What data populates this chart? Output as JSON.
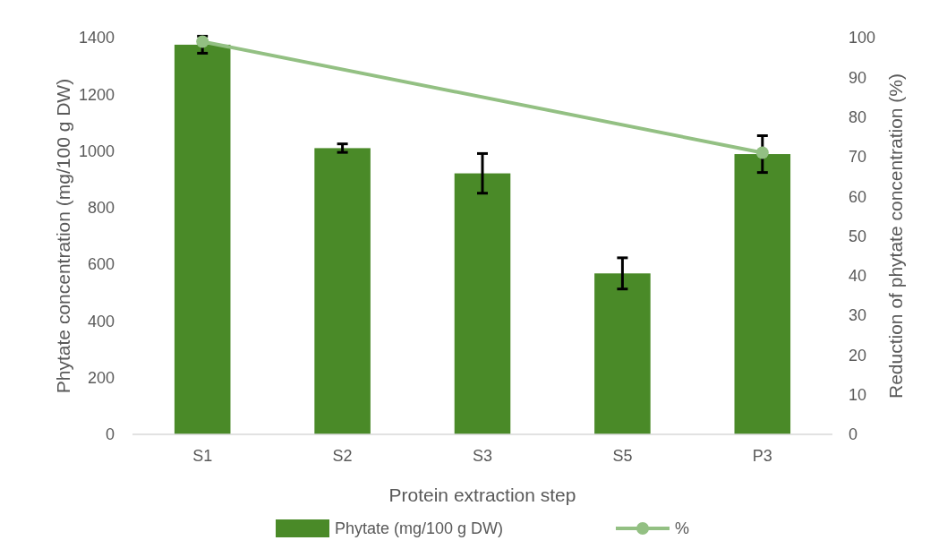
{
  "chart_data": {
    "type": "bar",
    "xlabel": "Protein extraction step",
    "ylabel": "Phytate concentration (mg/100 g DW)",
    "y2label": "Reduction of phytate concentration (%)",
    "categories": [
      "S1",
      "S2",
      "S3",
      "S5",
      "P3"
    ],
    "series": [
      {
        "name": "Phytate (mg/100 g DW)",
        "color": "#4a8a28",
        "values": [
          1375,
          1010,
          921,
          568,
          989
        ],
        "errors": [
          30,
          15,
          70,
          55,
          65
        ]
      },
      {
        "name": "%",
        "type": "line",
        "axis": "y2",
        "color": "#93c083",
        "values": [
          99,
          null,
          null,
          null,
          71
        ],
        "marker": "circle"
      }
    ],
    "ylim": [
      0,
      1400
    ],
    "yticks": [
      0,
      200,
      400,
      600,
      800,
      1000,
      1200,
      1400
    ],
    "y2lim": [
      0,
      100
    ],
    "y2ticks": [
      0,
      10,
      20,
      30,
      40,
      50,
      60,
      70,
      80,
      90,
      100
    ],
    "grid": false,
    "legend": "bottom"
  }
}
